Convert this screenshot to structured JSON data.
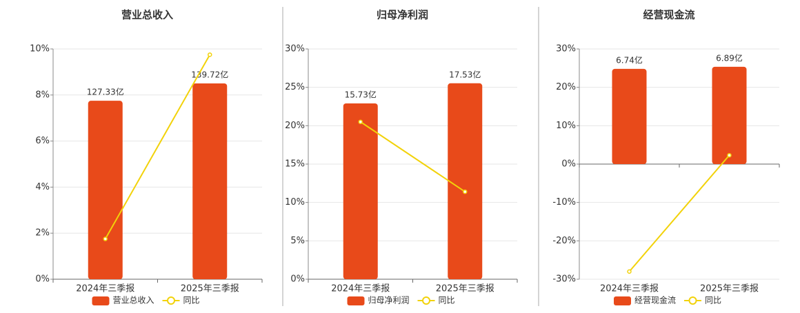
{
  "chart_data": [
    {
      "type": "combo",
      "title": "营业总收入",
      "categories": [
        "2024年三季报",
        "2025年三季报"
      ],
      "ylim": [
        0,
        10
      ],
      "yticks": [
        {
          "value": 0,
          "label": "0%"
        },
        {
          "value": 2,
          "label": "2%"
        },
        {
          "value": 4,
          "label": "4%"
        },
        {
          "value": 6,
          "label": "6%"
        },
        {
          "value": 8,
          "label": "8%"
        },
        {
          "value": 10,
          "label": "10%"
        }
      ],
      "y2lim": [
        0,
        164.3
      ],
      "grid": true,
      "series": [
        {
          "name": "营业总收入",
          "type": "bar",
          "color": "#e84a1a",
          "axis": "y2",
          "values": [
            127.33,
            139.72
          ],
          "value_labels": [
            "127.33亿",
            "139.72亿"
          ]
        },
        {
          "name": "同比",
          "type": "line",
          "color": "#f2d20a",
          "values": [
            1.75,
            9.75
          ]
        }
      ]
    },
    {
      "type": "combo",
      "title": "归母净利润",
      "categories": [
        "2024年三季报",
        "2025年三季报"
      ],
      "ylim": [
        0,
        30
      ],
      "yticks": [
        {
          "value": 0,
          "label": "0%"
        },
        {
          "value": 5,
          "label": "5%"
        },
        {
          "value": 10,
          "label": "10%"
        },
        {
          "value": 15,
          "label": "15%"
        },
        {
          "value": 20,
          "label": "20%"
        },
        {
          "value": 25,
          "label": "25%"
        },
        {
          "value": 30,
          "label": "30%"
        }
      ],
      "y2lim": [
        0,
        20.6
      ],
      "grid": true,
      "series": [
        {
          "name": "归母净利润",
          "type": "bar",
          "color": "#e84a1a",
          "axis": "y2",
          "values": [
            15.73,
            17.53
          ],
          "value_labels": [
            "15.73亿",
            "17.53亿"
          ]
        },
        {
          "name": "同比",
          "type": "line",
          "color": "#f2d20a",
          "values": [
            20.5,
            11.4
          ]
        }
      ]
    },
    {
      "type": "combo",
      "title": "经营现金流",
      "categories": [
        "2024年三季报",
        "2025年三季报"
      ],
      "ylim": [
        -30,
        30
      ],
      "yticks": [
        {
          "value": -30,
          "label": "-30%"
        },
        {
          "value": -20,
          "label": "-20%"
        },
        {
          "value": -10,
          "label": "-10%"
        },
        {
          "value": 0,
          "label": "0%"
        },
        {
          "value": 10,
          "label": "10%"
        },
        {
          "value": 20,
          "label": "20%"
        },
        {
          "value": 30,
          "label": "30%"
        }
      ],
      "y2lim": [
        -8.15,
        8.15
      ],
      "grid": true,
      "series": [
        {
          "name": "经营现金流",
          "type": "bar",
          "color": "#e84a1a",
          "axis": "y2",
          "values": [
            6.74,
            6.89
          ],
          "value_labels": [
            "6.74亿",
            "6.89亿"
          ]
        },
        {
          "name": "同比",
          "type": "line",
          "color": "#f2d20a",
          "values": [
            -28.0,
            2.3
          ]
        }
      ]
    }
  ]
}
